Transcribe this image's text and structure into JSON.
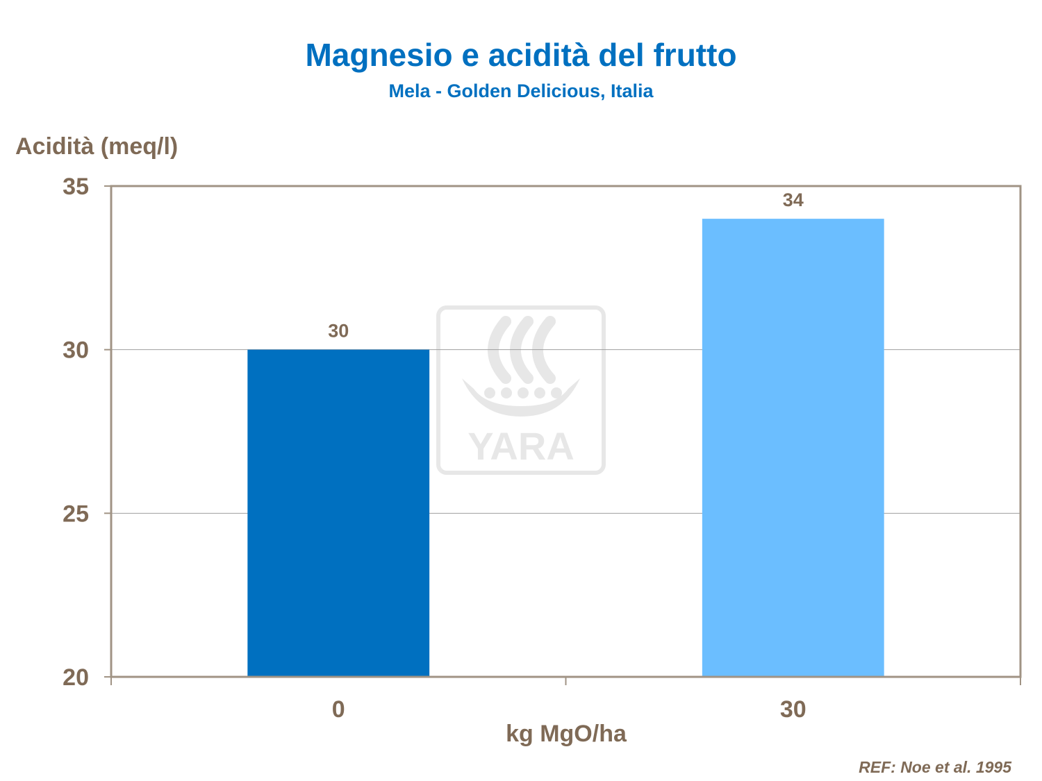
{
  "chart_data": {
    "type": "bar",
    "title": "Magnesio e acidità del frutto",
    "subtitle": "Mela - Golden Delicious, Italia",
    "ylabel": "Acidità (meq/l)",
    "xlabel": "kg MgO/ha",
    "categories": [
      "0",
      "30"
    ],
    "values": [
      30,
      34
    ],
    "data_labels": [
      "30",
      "34"
    ],
    "ylim": [
      20,
      35
    ],
    "yticks": [
      20,
      25,
      30,
      35
    ],
    "bar_colors": [
      "#0070C0",
      "#6BBEFF"
    ],
    "grid": true,
    "legend": "none"
  },
  "watermark": {
    "text": "YARA"
  },
  "reference": "REF: Noe et al. 1995",
  "colors": {
    "title": "#0070C0",
    "text": "#7F6A56",
    "frame": "#A09384",
    "grid": "#9E9E9E"
  }
}
